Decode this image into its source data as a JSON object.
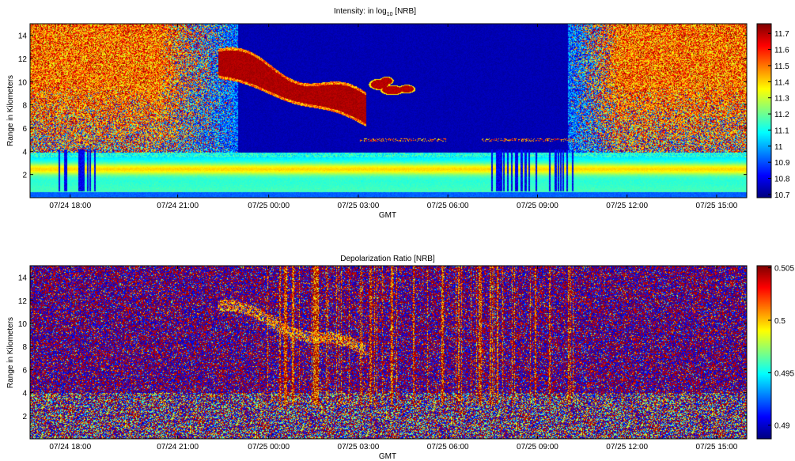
{
  "chart_data": [
    {
      "type": "heatmap",
      "title": "Intensity: in log",
      "title_sub": "10",
      "title_suffix": " [NRB]",
      "xlabel": "GMT",
      "ylabel": "Range in Kilometers",
      "xticks": [
        "07/24 18:00",
        "07/24 21:00",
        "07/25 00:00",
        "07/25 03:00",
        "07/25 06:00",
        "07/25 09:00",
        "07/25 12:00",
        "07/25 15:00"
      ],
      "yticks": [
        2,
        4,
        6,
        8,
        10,
        12,
        14
      ],
      "ylim": [
        0,
        15
      ],
      "colorbar_ticks": [
        10.7,
        10.8,
        10.9,
        11,
        11.1,
        11.2,
        11.3,
        11.4,
        11.5,
        11.6,
        11.7
      ],
      "colorbar_range": [
        10.68,
        11.76
      ],
      "colormap": "jet",
      "features": {
        "boundary_layer_km": [
          1.5,
          3.5
        ],
        "boundary_layer_peak_km": 2.5,
        "cirrus_layer": "07/24 22:30 to 07/25 05:00, 11.5 km descending to 8 km",
        "secondary_cloud": "07/25 04:30 to 07/25 06:00, 9 to 10 km",
        "daytime_background": "07/24 15:00 to 07/24 23:30 and 07/25 10:00 to 07/25 16:00"
      }
    },
    {
      "type": "heatmap",
      "title": "Depolarization Ratio [NRB]",
      "xlabel": "GMT",
      "ylabel": "Range in Kilometers",
      "xticks": [
        "07/24 18:00",
        "07/24 21:00",
        "07/25 00:00",
        "07/25 03:00",
        "07/25 06:00",
        "07/25 09:00",
        "07/25 12:00",
        "07/25 15:00"
      ],
      "yticks": [
        2,
        4,
        6,
        8,
        10,
        12,
        14
      ],
      "ylim": [
        0,
        15
      ],
      "colorbar_ticks": [
        0.49,
        0.495,
        0.5,
        0.505
      ],
      "colorbar_range": [
        0.4887,
        0.5052
      ],
      "colormap": "jet",
      "features": {
        "noise": "uniform red/blue speckle over full domain",
        "faint_cirrus_trace": "follows the cirrus layer of the intensity panel"
      }
    }
  ]
}
